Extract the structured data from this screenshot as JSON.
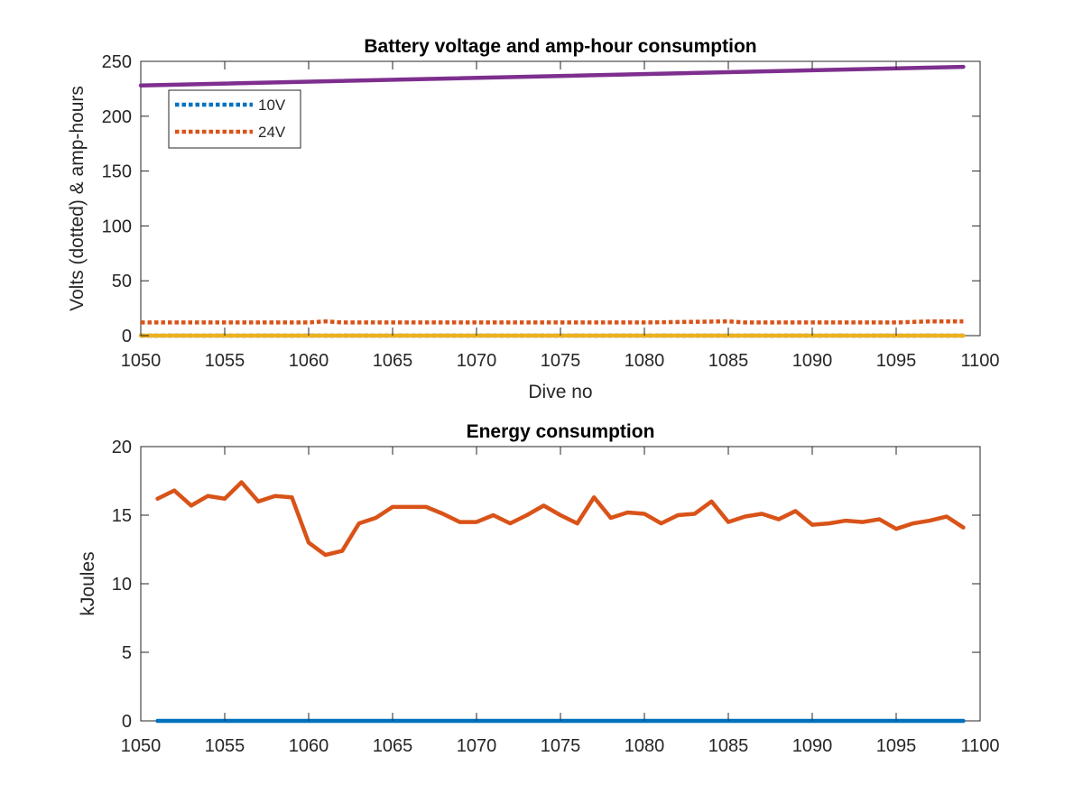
{
  "chart_data": [
    {
      "type": "line",
      "title": "Battery voltage and amp-hour consumption",
      "xlabel": "Dive no",
      "ylabel": "Volts (dotted) & amp-hours",
      "xlim": [
        1050,
        1100
      ],
      "ylim": [
        0,
        250
      ],
      "xticks": [
        1050,
        1055,
        1060,
        1065,
        1070,
        1075,
        1080,
        1085,
        1090,
        1095,
        1100
      ],
      "yticks": [
        0,
        50,
        100,
        150,
        200,
        250
      ],
      "grid": false,
      "legend": {
        "placement": "top-left",
        "entries": [
          "10V",
          "24V"
        ]
      },
      "series": [
        {
          "name": "10V",
          "color": "#0072BD",
          "style": "dotted",
          "x": [
            1050,
            1099
          ],
          "y": [
            0,
            0
          ]
        },
        {
          "name": "24V",
          "color": "#D95319",
          "style": "dotted",
          "x": [
            1050,
            1055,
            1060,
            1061,
            1062,
            1070,
            1080,
            1085,
            1086,
            1090,
            1095,
            1097,
            1099
          ],
          "y": [
            12,
            12,
            12,
            13,
            12,
            12,
            12,
            13,
            12,
            12,
            12,
            13,
            13
          ]
        },
        {
          "color": "#EDB120",
          "style": "solid",
          "x": [
            1050,
            1099
          ],
          "y": [
            0,
            0
          ]
        },
        {
          "color": "#7E2F8E",
          "style": "solid",
          "x": [
            1050,
            1099
          ],
          "y": [
            228,
            245
          ]
        }
      ]
    },
    {
      "type": "line",
      "title": "Energy consumption",
      "xlabel": "",
      "ylabel": "kJoules",
      "xlim": [
        1050,
        1100
      ],
      "ylim": [
        0,
        20
      ],
      "xticks": [
        1050,
        1055,
        1060,
        1065,
        1070,
        1075,
        1080,
        1085,
        1090,
        1095,
        1100
      ],
      "yticks": [
        0,
        5,
        10,
        15,
        20
      ],
      "grid": false,
      "series": [
        {
          "color": "#0072BD",
          "style": "solid",
          "x": [
            1051,
            1099
          ],
          "y": [
            0,
            0
          ]
        },
        {
          "color": "#D95319",
          "style": "solid",
          "x": [
            1051,
            1052,
            1053,
            1054,
            1055,
            1056,
            1057,
            1058,
            1059,
            1060,
            1061,
            1062,
            1063,
            1064,
            1065,
            1066,
            1067,
            1068,
            1069,
            1070,
            1071,
            1072,
            1073,
            1074,
            1075,
            1076,
            1077,
            1078,
            1079,
            1080,
            1081,
            1082,
            1083,
            1084,
            1085,
            1086,
            1087,
            1088,
            1089,
            1090,
            1091,
            1092,
            1093,
            1094,
            1095,
            1096,
            1097,
            1098,
            1099
          ],
          "y": [
            16.2,
            16.8,
            15.7,
            16.4,
            16.2,
            17.4,
            16.0,
            16.4,
            16.3,
            13.0,
            12.1,
            12.4,
            14.4,
            14.8,
            15.6,
            15.6,
            15.6,
            15.1,
            14.5,
            14.5,
            15.0,
            14.4,
            15.0,
            15.7,
            15.0,
            14.4,
            16.3,
            14.8,
            15.2,
            15.1,
            14.4,
            15.0,
            15.1,
            16.0,
            14.5,
            14.9,
            15.1,
            14.7,
            15.3,
            14.3,
            14.4,
            14.6,
            14.5,
            14.7,
            14.0,
            14.4,
            14.6,
            14.9,
            14.1
          ]
        }
      ]
    }
  ]
}
